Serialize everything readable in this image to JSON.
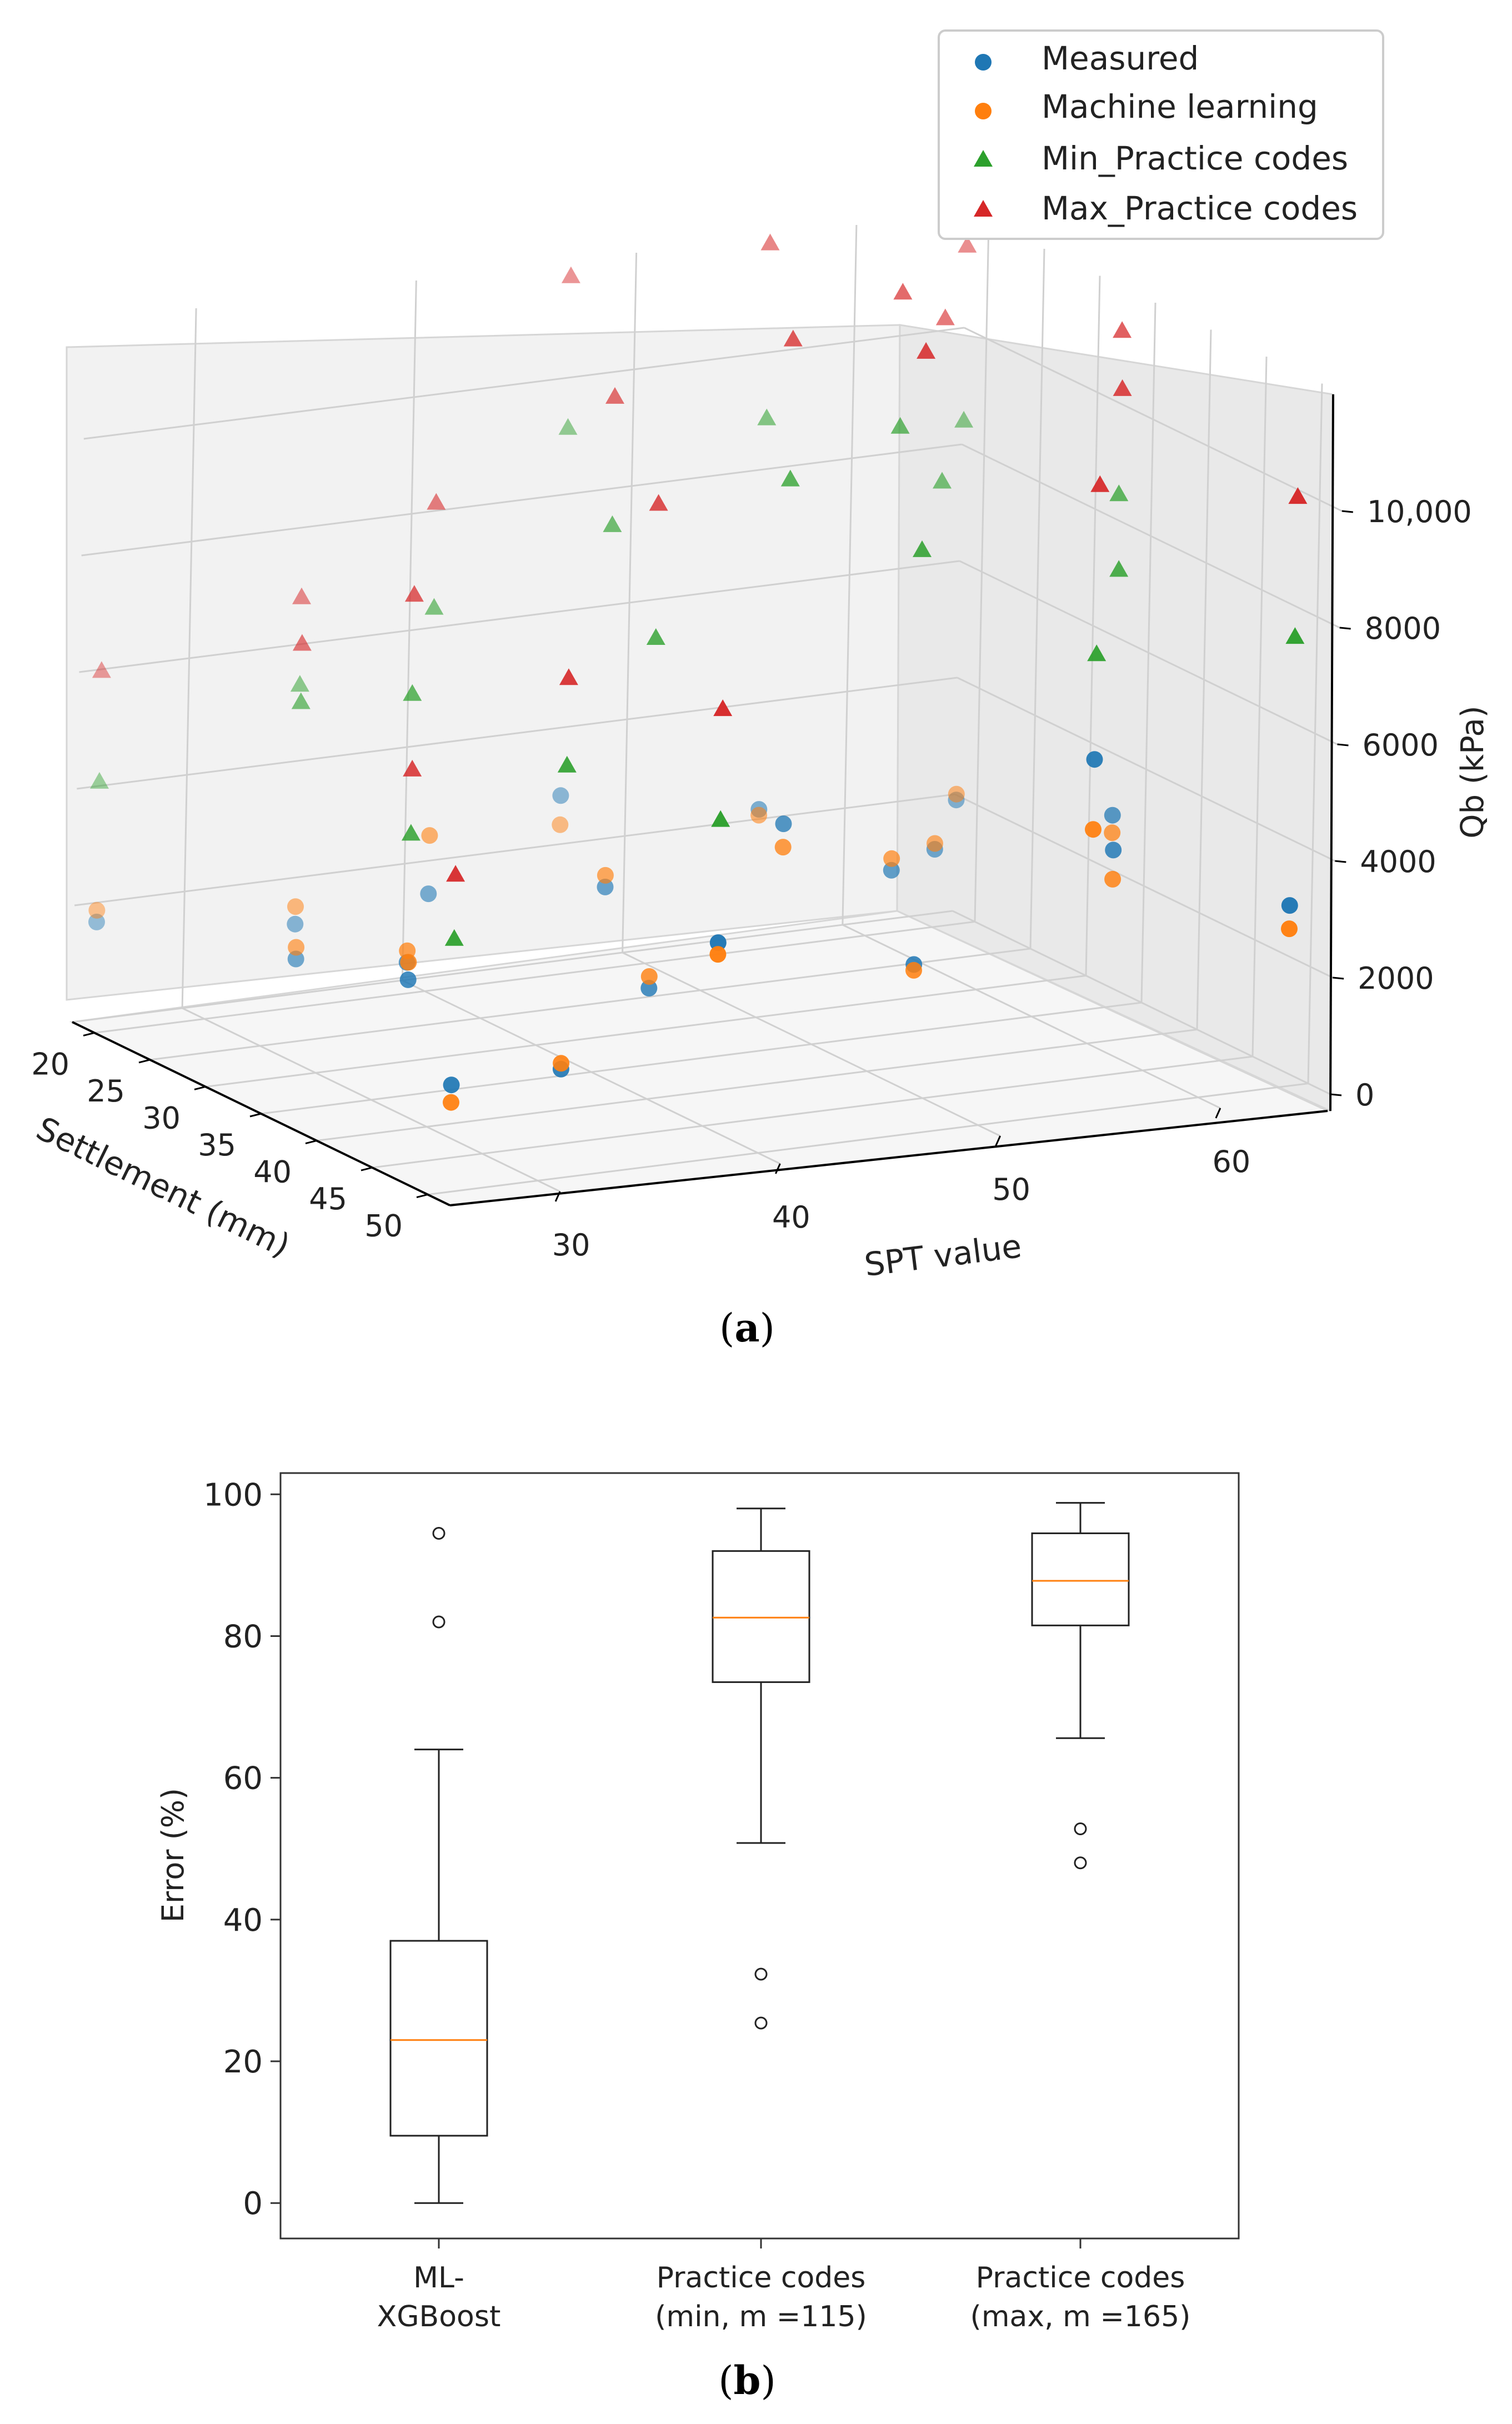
{
  "figure": {
    "panel_a_caption": {
      "open": "(",
      "letter": "a",
      "close": ")"
    },
    "panel_b_caption": {
      "open": "(",
      "letter": "b",
      "close": ")"
    }
  },
  "chart_data": [
    {
      "type": "scatter",
      "projection": "3d",
      "title": "",
      "xlabel": "SPT value",
      "ylabel": "Settlement (mm)",
      "zlabel": "Qb (kPa)",
      "xlim": [
        25,
        65
      ],
      "ylim": [
        18,
        52
      ],
      "zlim": [
        0,
        12000
      ],
      "x_ticks": [
        "30",
        "40",
        "50",
        "60"
      ],
      "y_ticks": [
        "20",
        "25",
        "30",
        "35",
        "40",
        "45",
        "50"
      ],
      "z_ticks": [
        "0",
        "2000",
        "4000",
        "6000",
        "8000",
        "10,000"
      ],
      "legend": [
        {
          "name": "Measured",
          "color": "#1f77b4",
          "marker": "circle"
        },
        {
          "name": "Machine learning",
          "color": "#ff7f0e",
          "marker": "circle"
        },
        {
          "name": "Min_Practice codes",
          "color": "#2ca02c",
          "marker": "triangle"
        },
        {
          "name": "Max_Practice codes",
          "color": "#d62728",
          "marker": "triangle"
        }
      ],
      "legend_position": "top-right",
      "samples": [
        {
          "spt": 25,
          "settlement": 20,
          "measured": 1900,
          "ml": 2100,
          "min_code": 4300,
          "max_code": 6200
        },
        {
          "spt": 27,
          "settlement": 48,
          "measured": 1600,
          "ml": 1300,
          "min_code": 4100,
          "max_code": 5200
        },
        {
          "spt": 29,
          "settlement": 30,
          "measured": 2000,
          "ml": 2200,
          "min_code": 6400,
          "max_code": 7400
        },
        {
          "spt": 28,
          "settlement": 42,
          "measured": 2800,
          "ml": 3100,
          "min_code": 5300,
          "max_code": 6400
        },
        {
          "spt": 31,
          "settlement": 36,
          "measured": 2400,
          "ml": 2600,
          "min_code": 7000,
          "max_code": 8700
        },
        {
          "spt": 33,
          "settlement": 46,
          "measured": 1400,
          "ml": 1500,
          "min_code": 6600,
          "max_code": 8100
        },
        {
          "spt": 32,
          "settlement": 24,
          "measured": 1900,
          "ml": 2200,
          "min_code": 6000,
          "max_code": 7500
        },
        {
          "spt": 36,
          "settlement": 28,
          "measured": 2600,
          "ml": 3600,
          "min_code": 7500,
          "max_code": 9300
        },
        {
          "spt": 38,
          "settlement": 50,
          "measured": 3700,
          "ml": 3500,
          "min_code": 5800,
          "max_code": 7700
        },
        {
          "spt": 40,
          "settlement": 40,
          "measured": 1900,
          "ml": 2100,
          "min_code": 7900,
          "max_code": 10200
        },
        {
          "spt": 42,
          "settlement": 32,
          "measured": 2800,
          "ml": 3000,
          "min_code": 9000,
          "max_code": 11200
        },
        {
          "spt": 45,
          "settlement": 22,
          "measured": 3300,
          "ml": 2800,
          "min_code": 9600,
          "max_code": 12200
        },
        {
          "spt": 47,
          "settlement": 38,
          "measured": 4200,
          "ml": 3800,
          "min_code": 10100,
          "max_code": 12500
        },
        {
          "spt": 50,
          "settlement": 44,
          "measured": 2200,
          "ml": 2100,
          "min_code": 9300,
          "max_code": 12700
        },
        {
          "spt": 52,
          "settlement": 26,
          "measured": 3100,
          "ml": 3000,
          "min_code": 9800,
          "max_code": 12800
        },
        {
          "spt": 54,
          "settlement": 34,
          "measured": 2700,
          "ml": 2900,
          "min_code": 10300,
          "max_code": 12600
        },
        {
          "spt": 56,
          "settlement": 48,
          "measured": 5800,
          "ml": 4600,
          "min_code": 7600,
          "max_code": 10500
        },
        {
          "spt": 58,
          "settlement": 30,
          "measured": 2500,
          "ml": 2600,
          "min_code": 8800,
          "max_code": 11600
        },
        {
          "spt": 60,
          "settlement": 42,
          "measured": 3500,
          "ml": 3000,
          "min_code": 8300,
          "max_code": 11400
        },
        {
          "spt": 62,
          "settlement": 24,
          "measured": 2600,
          "ml": 2700,
          "min_code": 9100,
          "max_code": 12100
        },
        {
          "spt": 63,
          "settlement": 36,
          "measured": 3400,
          "ml": 3100,
          "min_code": 8900,
          "max_code": 11700
        },
        {
          "spt": 64,
          "settlement": 50,
          "measured": 3100,
          "ml": 2700,
          "min_code": 7700,
          "max_code": 10100
        }
      ]
    },
    {
      "type": "box",
      "title": "",
      "xlabel": "",
      "ylabel": "Error (%)",
      "ylim": [
        -5,
        103
      ],
      "y_ticks": [
        "0",
        "20",
        "40",
        "60",
        "80",
        "100"
      ],
      "median_color": "#ff7f0e",
      "boxes": [
        {
          "label_line1": "ML-",
          "label_line2": "XGBoost",
          "whisker_low": 0,
          "q1": 9.5,
          "median": 23,
          "q3": 37,
          "whisker_high": 64,
          "outliers": [
            82,
            94.5
          ]
        },
        {
          "label_line1": "Practice codes",
          "label_line2": "(min, m =115)",
          "whisker_low": 50.8,
          "q1": 73.5,
          "median": 82.6,
          "q3": 92,
          "whisker_high": 98,
          "outliers": [
            32.3,
            25.4
          ]
        },
        {
          "label_line1": "Practice codes",
          "label_line2": "(max, m =165)",
          "whisker_low": 65.6,
          "q1": 81.5,
          "median": 87.8,
          "q3": 94.5,
          "whisker_high": 98.8,
          "outliers": [
            52.8,
            48
          ]
        }
      ]
    }
  ]
}
